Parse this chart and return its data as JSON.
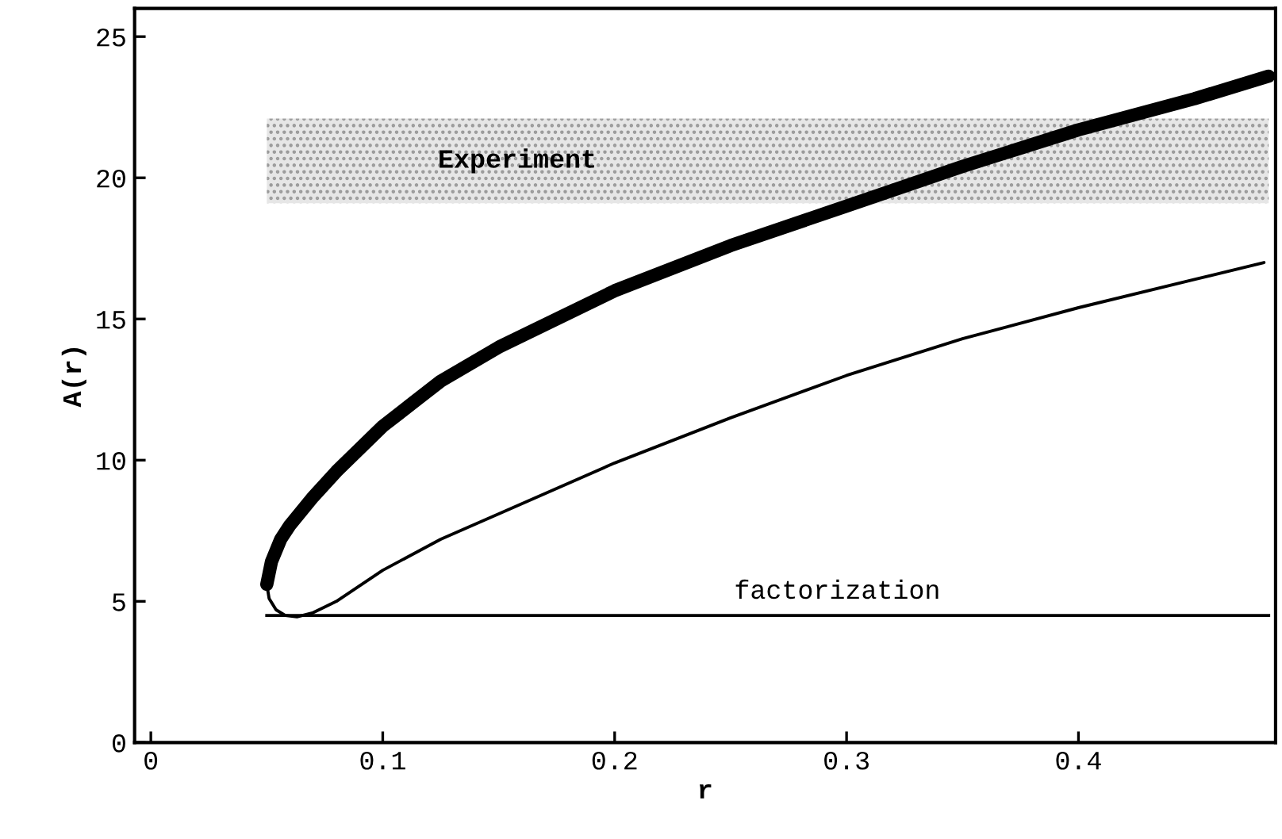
{
  "chart_data": {
    "type": "line",
    "xlabel": "r",
    "ylabel": "A(r)",
    "xlim": [
      -0.007,
      0.485
    ],
    "ylim": [
      0,
      26
    ],
    "xticks": [
      0,
      0.1,
      0.2,
      0.3,
      0.4
    ],
    "yticks": [
      0,
      5,
      10,
      15,
      20,
      25
    ],
    "grid": false,
    "legend": false,
    "marker": "none",
    "line_style": "solid",
    "series": [
      {
        "color": "#000000",
        "x": [
          0.05,
          0.052,
          0.056,
          0.06,
          0.07,
          0.08,
          0.1,
          0.125,
          0.15,
          0.175,
          0.2,
          0.25,
          0.3,
          0.35,
          0.4,
          0.45,
          0.482
        ],
        "values": [
          5.6,
          6.4,
          7.2,
          7.7,
          8.7,
          9.6,
          11.2,
          12.8,
          14.0,
          15.0,
          16.0,
          17.6,
          19.0,
          20.4,
          21.7,
          22.8,
          23.6
        ]
      },
      {
        "color": "#000000",
        "x": [
          0.05,
          0.051,
          0.054,
          0.058,
          0.063,
          0.07,
          0.08,
          0.1,
          0.125,
          0.15,
          0.2,
          0.25,
          0.3,
          0.35,
          0.4,
          0.45,
          0.48
        ],
        "values": [
          5.6,
          5.1,
          4.7,
          4.5,
          4.45,
          4.6,
          5.0,
          6.1,
          7.2,
          8.1,
          9.9,
          11.5,
          13.0,
          14.3,
          15.4,
          16.4,
          17.0
        ]
      }
    ],
    "ref_lines": [
      {
        "axis": "y",
        "value": 4.5,
        "label": "factorization",
        "color": "#000000",
        "line_style": "solid"
      }
    ],
    "bands": [
      {
        "axis": "y",
        "from": 19.1,
        "to": 22.1,
        "label": "Experiment",
        "color": "#9a9a9a"
      }
    ]
  }
}
